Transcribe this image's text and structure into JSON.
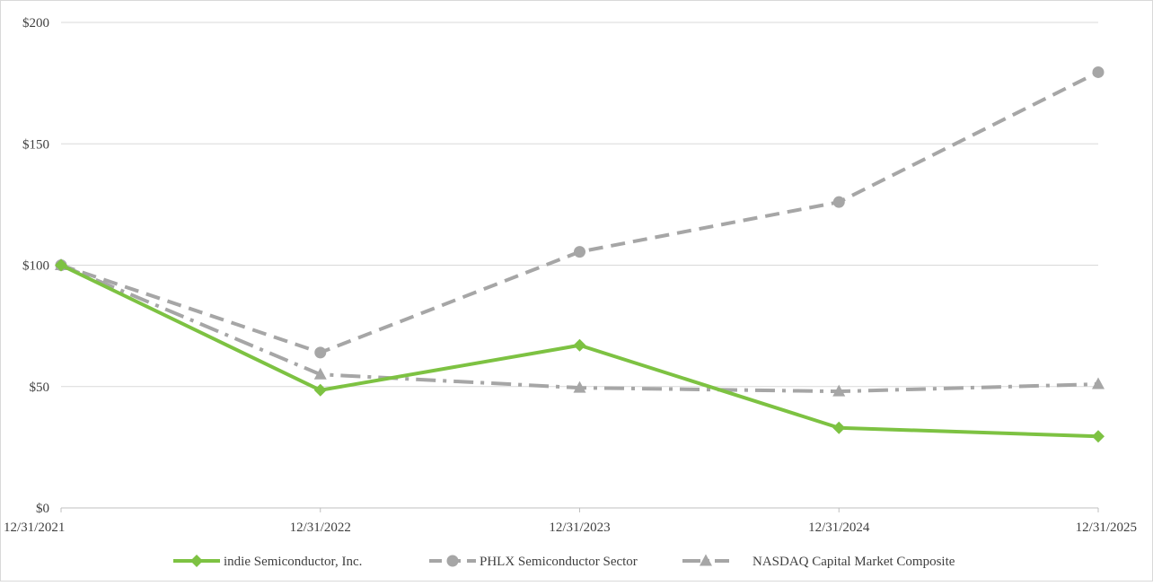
{
  "chart_data": {
    "type": "line",
    "title": "",
    "xlabel": "",
    "ylabel": "",
    "categories": [
      "12/31/2021",
      "12/31/2022",
      "12/31/2023",
      "12/31/2024",
      "12/31/2025"
    ],
    "ylim": [
      0,
      200
    ],
    "yticks": [
      0,
      50,
      100,
      150,
      200
    ],
    "ytick_labels": [
      "$0",
      "$50",
      "$100",
      "$150",
      "$200"
    ],
    "grid": true,
    "legend_position": "bottom",
    "series": [
      {
        "name": "indie Semiconductor, Inc.",
        "values": [
          100,
          48.5,
          67,
          33,
          29.5
        ],
        "color": "#7dc242",
        "line_style": "solid",
        "marker": "diamond"
      },
      {
        "name": "PHLX Semiconductor Sector",
        "values": [
          100,
          64,
          105.5,
          126,
          179.5
        ],
        "color": "#a6a6a6",
        "line_style": "dashed",
        "marker": "circle"
      },
      {
        "name": "NASDAQ Capital Market Composite",
        "values": [
          100,
          55,
          49.5,
          48,
          51
        ],
        "color": "#a6a6a6",
        "line_style": "dash-dot",
        "marker": "triangle"
      }
    ]
  }
}
